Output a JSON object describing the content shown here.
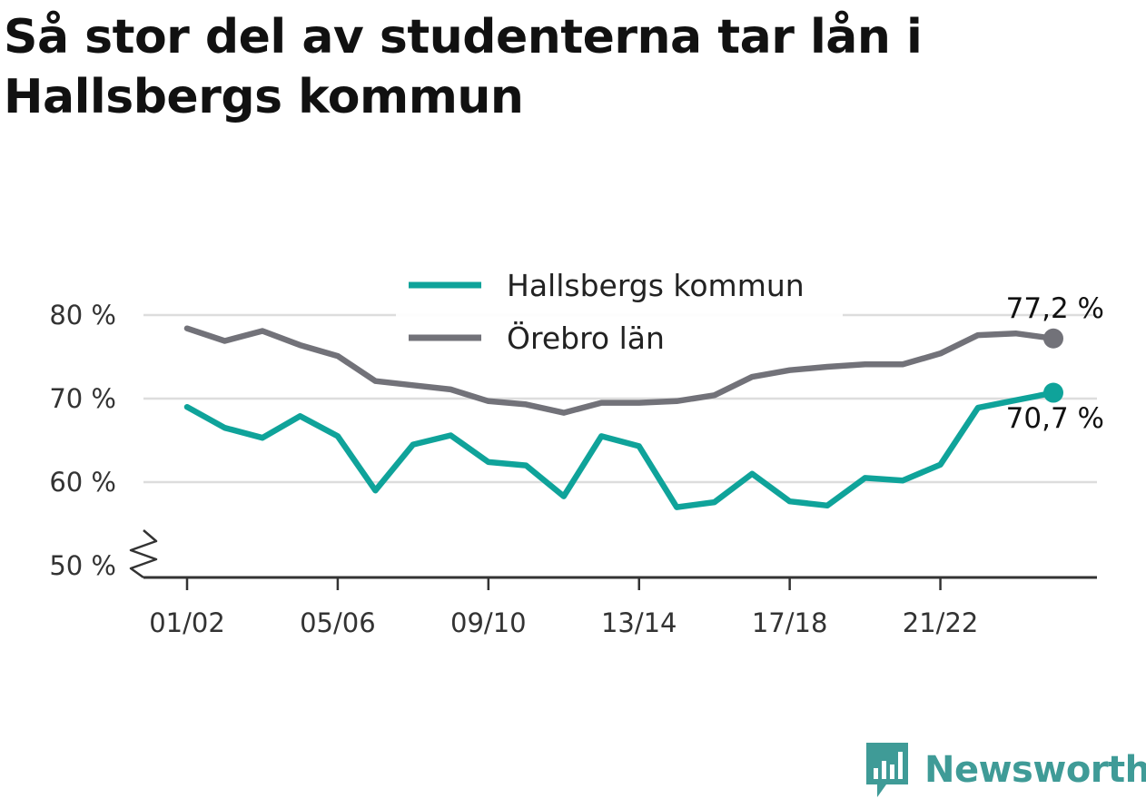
{
  "title": "Så stor del av studenterna tar lån i Hallsbergs kommun",
  "brand": {
    "name": "Newsworthy",
    "icon": "newsworthy-logo-icon",
    "color": "#3f9b97"
  },
  "chart_data": {
    "type": "line",
    "title": "Så stor del av studenterna tar lån i Hallsbergs kommun",
    "xlabel": "",
    "ylabel": "",
    "ylim": [
      50,
      80
    ],
    "y_axis_break": true,
    "grid": true,
    "legend_position": "top-center",
    "x": [
      "01/02",
      "02/03",
      "03/04",
      "04/05",
      "05/06",
      "06/07",
      "07/08",
      "08/09",
      "09/10",
      "10/11",
      "11/12",
      "12/13",
      "13/14",
      "14/15",
      "15/16",
      "16/17",
      "17/18",
      "18/19",
      "19/20",
      "20/21",
      "21/22",
      "22/23",
      "23/24",
      "24/25"
    ],
    "x_tick_labels": [
      "01/02",
      "05/06",
      "09/10",
      "13/14",
      "17/18",
      "21/22"
    ],
    "y_tick_labels": [
      "80 %",
      "70 %",
      "60 %",
      "50 %"
    ],
    "y_ticks": [
      80,
      70,
      60,
      50
    ],
    "series": [
      {
        "name": "Hallsbergs kommun",
        "color": "#0fa39a",
        "values": [
          69.0,
          66.5,
          65.3,
          67.9,
          65.5,
          59.0,
          64.5,
          65.6,
          62.4,
          62.0,
          58.3,
          65.5,
          64.3,
          57.0,
          57.6,
          61.0,
          57.7,
          57.2,
          60.5,
          60.2,
          62.1,
          68.9,
          69.8,
          70.7
        ],
        "end_label": "70,7 %"
      },
      {
        "name": "Örebro län",
        "color": "#727279",
        "values": [
          78.4,
          76.9,
          78.1,
          76.4,
          75.1,
          72.1,
          71.6,
          71.1,
          69.7,
          69.3,
          68.3,
          69.5,
          69.5,
          69.7,
          70.4,
          72.6,
          73.4,
          73.8,
          74.1,
          74.1,
          75.4,
          77.6,
          77.8,
          77.2
        ],
        "end_label": "77,2 %"
      }
    ]
  }
}
